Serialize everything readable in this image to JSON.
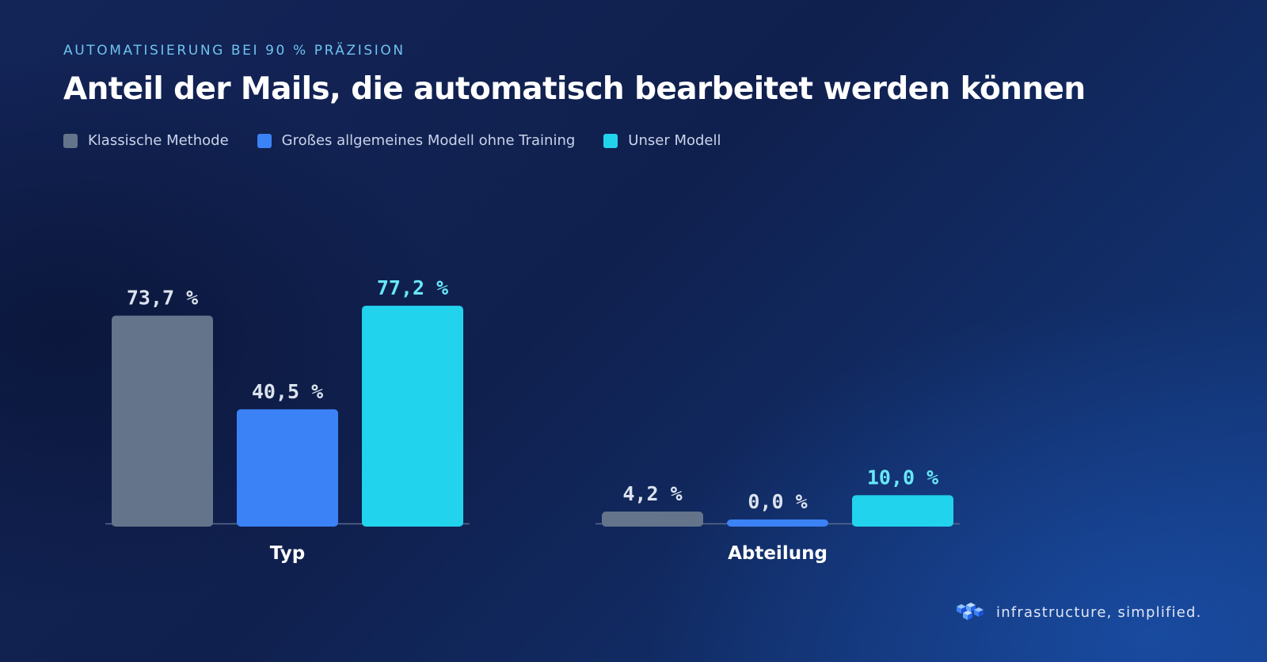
{
  "header": {
    "subtitle": "AUTOMATISIERUNG BEI 90 % PRÄZISION",
    "title": "Anteil der Mails, die automatisch bearbeitet werden können"
  },
  "legend": [
    {
      "label": "Klassische Methode",
      "color": "#64748b"
    },
    {
      "label": "Großes allgemeines Modell ohne Training",
      "color": "#3b82f6"
    },
    {
      "label": "Unser Modell",
      "color": "#22d3ee"
    }
  ],
  "chart_data": {
    "type": "bar",
    "title": "Anteil der Mails, die automatisch bearbeitet werden können",
    "subtitle": "AUTOMATISIERUNG BEI 90 % PRÄZISION",
    "xlabel": "",
    "ylabel": "",
    "unit": "%",
    "ylim": [
      0,
      100
    ],
    "grid": false,
    "legend_position": "top-left",
    "categories": [
      "Typ",
      "Abteilung"
    ],
    "series": [
      {
        "name": "Klassische Methode",
        "color": "#64748b",
        "label_color": "#dce3ee",
        "values": [
          73.7,
          4.2
        ],
        "labels": [
          "73,7 %",
          "4,2 %"
        ]
      },
      {
        "name": "Großes allgemeines Modell ohne Training",
        "color": "#3b82f6",
        "label_color": "#dce3ee",
        "values": [
          40.5,
          0.0
        ],
        "labels": [
          "40,5 %",
          "0,0 %"
        ]
      },
      {
        "name": "Unser Modell",
        "color": "#22d3ee",
        "label_color": "#67e8f9",
        "values": [
          77.2,
          10.0
        ],
        "labels": [
          "77,2 %",
          "10,0 %"
        ]
      }
    ]
  },
  "brand": {
    "icon": "stacked-cubes-logo",
    "text": "infrastructure, simplified."
  }
}
